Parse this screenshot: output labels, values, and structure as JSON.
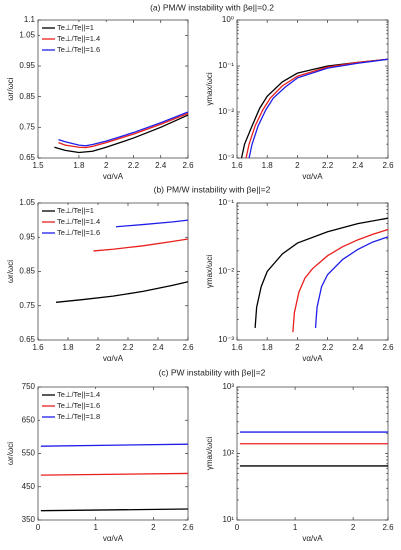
{
  "row_titles": [
    "(a) PM/W instability with βe||=0.2",
    "(b) PM/W instability with βe||=2",
    "(c) PW instability with βe||=2"
  ],
  "chart_data": [
    {
      "type": "line",
      "xlabel": "vα/vA",
      "ylabel": "ωr/ωci",
      "xlim": [
        1.5,
        2.6
      ],
      "xticks": [
        1.5,
        1.8,
        2,
        2.2,
        2.4,
        2.6
      ],
      "ylim": [
        0.65,
        1.1
      ],
      "yticks": [
        0.65,
        0.75,
        0.85,
        0.95,
        1.05,
        1.1
      ],
      "legend": "top-left",
      "series": [
        {
          "name": "Te⊥/Te||=1",
          "color": "#000000",
          "x": [
            1.62,
            1.7,
            1.8,
            1.9,
            2.0,
            2.2,
            2.4,
            2.6
          ],
          "values": [
            0.685,
            0.675,
            0.668,
            0.672,
            0.685,
            0.715,
            0.75,
            0.79
          ]
        },
        {
          "name": "Te⊥/Te||=1.4",
          "color": "#e8201c",
          "x": [
            1.65,
            1.7,
            1.8,
            1.85,
            1.9,
            2.0,
            2.2,
            2.4,
            2.6
          ],
          "values": [
            0.7,
            0.692,
            0.685,
            0.684,
            0.688,
            0.7,
            0.728,
            0.76,
            0.795
          ]
        },
        {
          "name": "Te⊥/Te||=1.6",
          "color": "#1f1fe8",
          "x": [
            1.65,
            1.7,
            1.8,
            1.85,
            1.9,
            2.0,
            2.2,
            2.4,
            2.6
          ],
          "values": [
            0.71,
            0.703,
            0.692,
            0.69,
            0.694,
            0.705,
            0.733,
            0.765,
            0.8
          ]
        }
      ]
    },
    {
      "type": "line",
      "xlabel": "vα/vA",
      "ylabel": "γmax/ωci",
      "ylog": true,
      "xlim": [
        1.6,
        2.6
      ],
      "xticks": [
        1.6,
        1.8,
        2,
        2.2,
        2.4,
        2.6
      ],
      "ylim": [
        0.001,
        1
      ],
      "yticks": [
        {
          "value": 0.001,
          "label": "10⁻³"
        },
        {
          "value": 0.01,
          "label": "10⁻²"
        },
        {
          "value": 0.1,
          "label": "10⁻¹"
        },
        {
          "value": 1,
          "label": "10⁰"
        }
      ],
      "series": [
        {
          "color": "#000000",
          "x": [
            1.63,
            1.65,
            1.7,
            1.75,
            1.8,
            1.9,
            2.0,
            2.2,
            2.4,
            2.6
          ],
          "values": [
            0.001,
            0.002,
            0.005,
            0.012,
            0.022,
            0.045,
            0.07,
            0.1,
            0.12,
            0.14
          ]
        },
        {
          "color": "#e8201c",
          "x": [
            1.66,
            1.68,
            1.72,
            1.77,
            1.82,
            1.9,
            2.0,
            2.2,
            2.4,
            2.6
          ],
          "values": [
            0.001,
            0.002,
            0.005,
            0.011,
            0.02,
            0.037,
            0.06,
            0.095,
            0.12,
            0.14
          ]
        },
        {
          "color": "#1f1fe8",
          "x": [
            1.68,
            1.7,
            1.74,
            1.79,
            1.84,
            1.92,
            2.0,
            2.2,
            2.4,
            2.6
          ],
          "values": [
            0.001,
            0.002,
            0.005,
            0.011,
            0.02,
            0.035,
            0.055,
            0.09,
            0.115,
            0.14
          ]
        }
      ]
    },
    {
      "type": "line",
      "xlabel": "vα/vA",
      "ylabel": "ωr/ωci",
      "xlim": [
        1.6,
        2.6
      ],
      "xticks": [
        1.6,
        1.8,
        2,
        2.2,
        2.4,
        2.6
      ],
      "ylim": [
        0.65,
        1.05
      ],
      "yticks": [
        0.65,
        0.75,
        0.85,
        0.95,
        1.05
      ],
      "legend": "top-left",
      "series": [
        {
          "name": "Te⊥/Te||=1",
          "color": "#000000",
          "x": [
            1.72,
            1.9,
            2.1,
            2.3,
            2.5,
            2.6
          ],
          "values": [
            0.76,
            0.768,
            0.778,
            0.792,
            0.81,
            0.82
          ]
        },
        {
          "name": "Te⊥/Te||=1.4",
          "color": "#e8201c",
          "x": [
            1.97,
            2.1,
            2.3,
            2.5,
            2.6
          ],
          "values": [
            0.91,
            0.915,
            0.925,
            0.938,
            0.945
          ]
        },
        {
          "name": "Te⊥/Te||=1.6",
          "color": "#1f1fe8",
          "x": [
            2.1,
            2.3,
            2.5,
            2.6
          ],
          "values": [
            0.98,
            0.987,
            0.995,
            1.0
          ]
        }
      ]
    },
    {
      "type": "line",
      "xlabel": "vα/vA",
      "ylabel": "γmax/ωci",
      "ylog": true,
      "xlim": [
        1.6,
        2.6
      ],
      "xticks": [
        1.6,
        1.8,
        2,
        2.2,
        2.4,
        2.6
      ],
      "ylim": [
        0.001,
        0.1
      ],
      "yticks": [
        {
          "value": 0.001,
          "label": "10⁻³"
        },
        {
          "value": 0.01,
          "label": "10⁻²"
        },
        {
          "value": 0.1,
          "label": "10⁻¹"
        }
      ],
      "series": [
        {
          "color": "#000000",
          "x": [
            1.72,
            1.73,
            1.76,
            1.8,
            1.9,
            2.0,
            2.2,
            2.4,
            2.6
          ],
          "values": [
            0.0015,
            0.003,
            0.006,
            0.01,
            0.018,
            0.026,
            0.038,
            0.05,
            0.06
          ]
        },
        {
          "color": "#e8201c",
          "x": [
            1.97,
            1.98,
            2.01,
            2.05,
            2.1,
            2.2,
            2.3,
            2.4,
            2.5,
            2.6
          ],
          "values": [
            0.0013,
            0.0025,
            0.005,
            0.008,
            0.011,
            0.017,
            0.023,
            0.029,
            0.035,
            0.041
          ]
        },
        {
          "color": "#1f1fe8",
          "x": [
            2.12,
            2.13,
            2.16,
            2.2,
            2.3,
            2.4,
            2.5,
            2.6
          ],
          "values": [
            0.0015,
            0.003,
            0.006,
            0.009,
            0.015,
            0.021,
            0.027,
            0.032
          ]
        }
      ]
    },
    {
      "type": "line",
      "xlabel": "vα/vA",
      "ylabel": "ωr/ωci",
      "xlim": [
        0,
        2.6
      ],
      "xticks": [
        0,
        1,
        2,
        2.6
      ],
      "ylim": [
        350,
        750
      ],
      "yticks": [
        350,
        450,
        550,
        650,
        750
      ],
      "legend": "top-left",
      "series": [
        {
          "name": "Te⊥/Te||=1.4",
          "color": "#000000",
          "x": [
            0.05,
            2.6
          ],
          "values": [
            378,
            383
          ]
        },
        {
          "name": "Te⊥/Te||=1.6",
          "color": "#e8201c",
          "x": [
            0.05,
            2.6
          ],
          "values": [
            485,
            490
          ]
        },
        {
          "name": "Te⊥/Te||=1.8",
          "color": "#1f1fe8",
          "x": [
            0.05,
            2.6
          ],
          "values": [
            572,
            578
          ]
        }
      ]
    },
    {
      "type": "line",
      "xlabel": "vα/vA",
      "ylabel": "γmax/ωci",
      "ylog": true,
      "xlim": [
        0,
        2.6
      ],
      "xticks": [
        0,
        1,
        2,
        2.6
      ],
      "ylim": [
        10,
        1000
      ],
      "yticks": [
        {
          "value": 10,
          "label": "10¹"
        },
        {
          "value": 100,
          "label": "10²"
        },
        {
          "value": 1000,
          "label": "10³"
        }
      ],
      "series": [
        {
          "color": "#000000",
          "x": [
            0.05,
            2.6
          ],
          "values": [
            65,
            65
          ]
        },
        {
          "color": "#e8201c",
          "x": [
            0.05,
            2.6
          ],
          "values": [
            140,
            140
          ]
        },
        {
          "color": "#1f1fe8",
          "x": [
            0.05,
            2.6
          ],
          "values": [
            210,
            210
          ]
        }
      ]
    }
  ]
}
